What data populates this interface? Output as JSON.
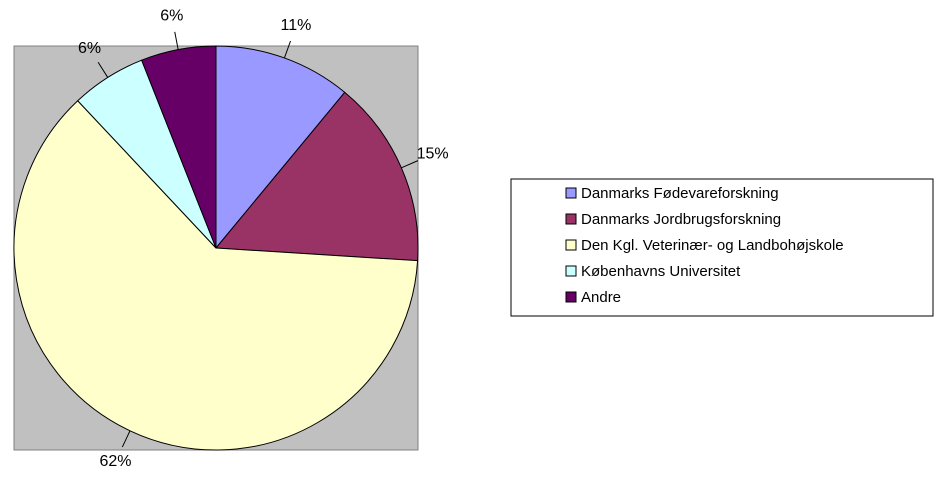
{
  "chart_data": {
    "type": "pie",
    "categories": [
      "Danmarks Fødevareforskning",
      "Danmarks Jordbrugsforskning",
      "Den Kgl. Veterinær- og Landbohøjskole",
      "Københavns Universitet",
      "Andre"
    ],
    "values": [
      11,
      15,
      62,
      6,
      6
    ],
    "value_labels": [
      "11%",
      "15%",
      "62%",
      "6%",
      "6%"
    ],
    "colors": [
      "#9999ff",
      "#993366",
      "#ffffcc",
      "#ccffff",
      "#660066"
    ],
    "legend": "right"
  }
}
